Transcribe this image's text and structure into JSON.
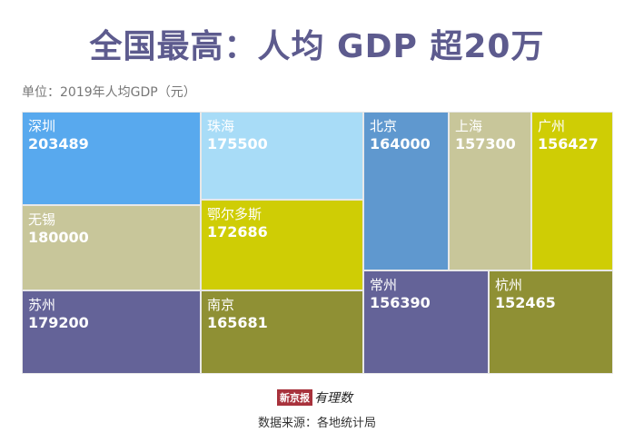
{
  "title": "全国最高：人均 GDP 超20万",
  "unit_label": "单位：2019年人均GDP（元）",
  "logo": {
    "brand": "新京报",
    "sub": "有理数"
  },
  "source": "数据来源：各地统计局",
  "colors": {
    "title": "#5d5b8e"
  },
  "chart_data": {
    "type": "treemap",
    "title": "全国最高：人均 GDP 超20万",
    "unit": "单位：2019年人均GDP（元）",
    "items": [
      {
        "name": "深圳",
        "value": 203489,
        "color": "#58a9ee"
      },
      {
        "name": "珠海",
        "value": 175500,
        "color": "#a8dcf7"
      },
      {
        "name": "北京",
        "value": 164000,
        "color": "#5f98cf"
      },
      {
        "name": "上海",
        "value": 157300,
        "color": "#c8c69a"
      },
      {
        "name": "广州",
        "value": 156427,
        "color": "#cfcd05"
      },
      {
        "name": "无锡",
        "value": 180000,
        "color": "#c8c69a"
      },
      {
        "name": "鄂尔多斯",
        "value": 172686,
        "color": "#cfcd05"
      },
      {
        "name": "苏州",
        "value": 179200,
        "color": "#646398"
      },
      {
        "name": "南京",
        "value": 165681,
        "color": "#8f9034"
      },
      {
        "name": "常州",
        "value": 156390,
        "color": "#646398"
      },
      {
        "name": "杭州",
        "value": 152465,
        "color": "#8f9034"
      }
    ]
  }
}
